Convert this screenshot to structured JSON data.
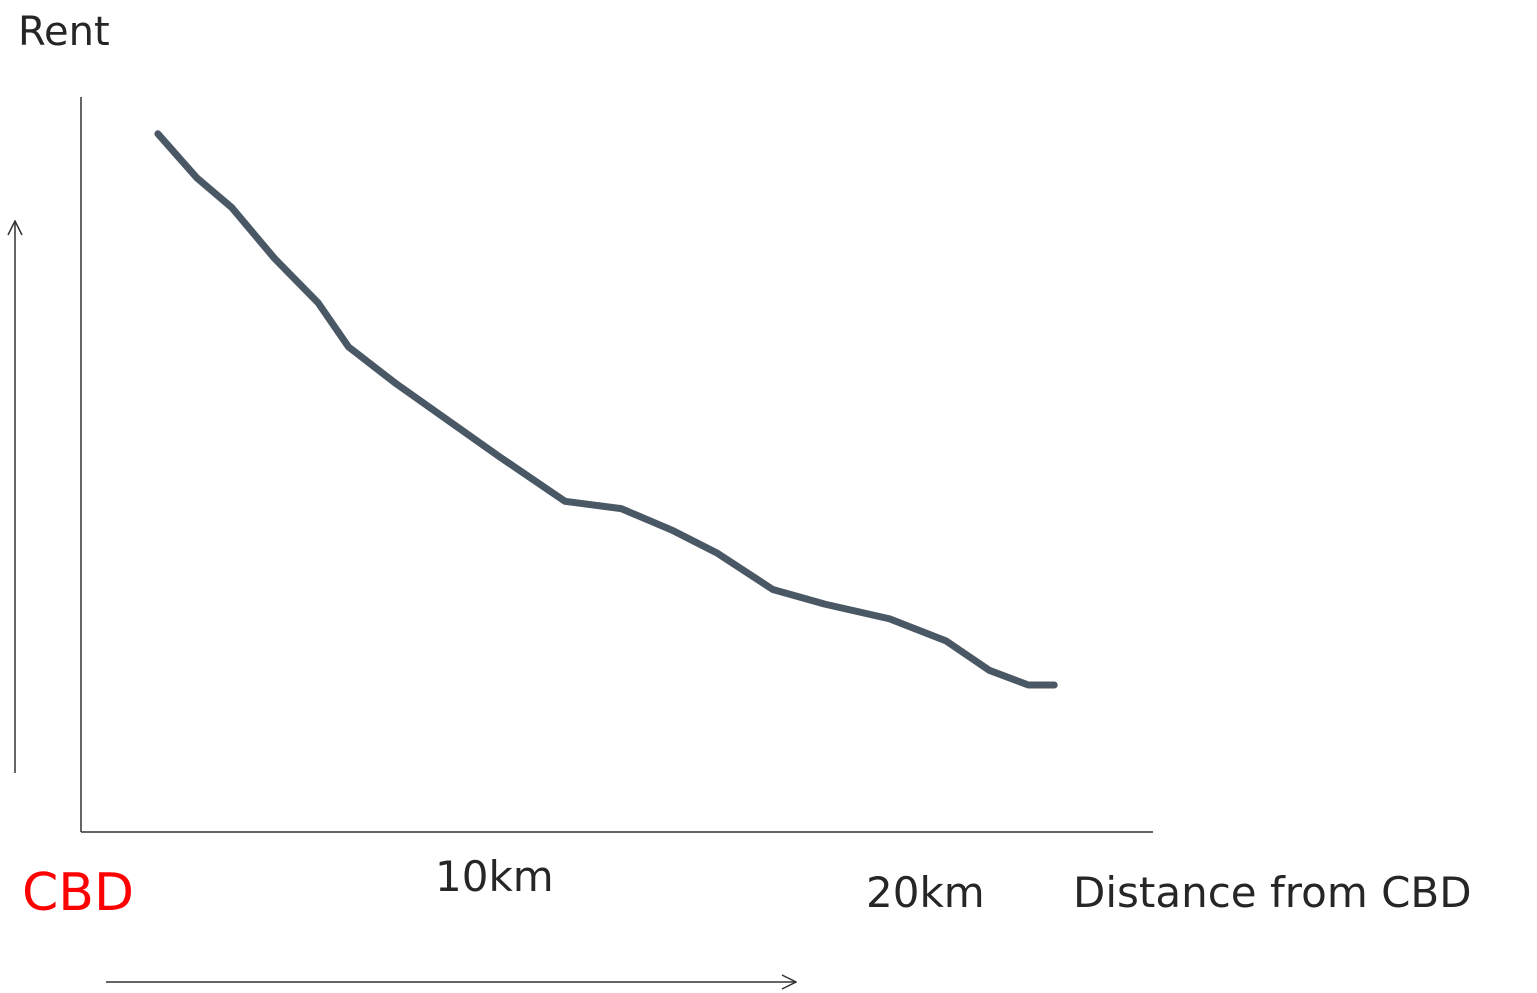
{
  "chart_data": {
    "type": "line",
    "ylabel": "Rent",
    "xlabel": "Distance from CBD",
    "origin_label": "CBD",
    "origin_color": "#ff0000",
    "x_ticks": [
      {
        "value": 10,
        "label": "10km"
      },
      {
        "value": 20,
        "label": "20km"
      }
    ],
    "xlim": [
      0,
      25
    ],
    "ylim": [
      0,
      100
    ],
    "grid": false,
    "legend": "none",
    "line_color": "#4a5866",
    "series": [
      {
        "x": [
          2.1,
          3.0,
          3.8,
          4.8,
          5.8,
          6.5,
          7.6,
          8.8,
          10.0,
          11.5,
          12.8,
          14.0,
          15.0,
          16.3,
          17.5,
          19.0,
          20.3,
          21.3,
          22.2,
          22.8
        ],
        "y": [
          95,
          89,
          85,
          78,
          72,
          66,
          61,
          56,
          51,
          45,
          44,
          41,
          38,
          33,
          31,
          29,
          26,
          22,
          20,
          20
        ]
      }
    ]
  }
}
